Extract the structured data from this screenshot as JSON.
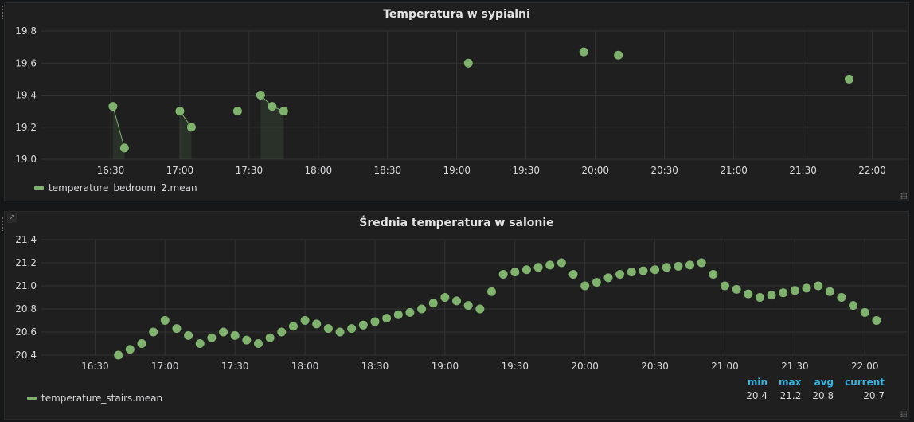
{
  "chart_data": [
    {
      "type": "scatter",
      "title": "Temperatura w sypialni",
      "xlim": [
        "16:00",
        "22:15"
      ],
      "ylim": [
        19.0,
        19.8
      ],
      "yticks": [
        "19.0",
        "19.2",
        "19.4",
        "19.6",
        "19.8"
      ],
      "xticks": [
        "16:30",
        "17:00",
        "17:30",
        "18:00",
        "18:30",
        "19:00",
        "19:30",
        "20:00",
        "20:30",
        "21:00",
        "21:30",
        "22:00"
      ],
      "grid": true,
      "legend_position": "bottom-left",
      "color": "#7eb26d",
      "series": [
        {
          "name": "temperature_bedroom_2.mean",
          "points": [
            {
              "x": "16:31",
              "y": 19.33
            },
            {
              "x": "16:36",
              "y": 19.07
            },
            {
              "x": "17:00",
              "y": 19.3
            },
            {
              "x": "17:05",
              "y": 19.2
            },
            {
              "x": "17:25",
              "y": 19.3
            },
            {
              "x": "17:35",
              "y": 19.4
            },
            {
              "x": "17:40",
              "y": 19.33
            },
            {
              "x": "17:45",
              "y": 19.3
            },
            {
              "x": "19:05",
              "y": 19.6
            },
            {
              "x": "19:55",
              "y": 19.67
            },
            {
              "x": "20:10",
              "y": 19.65
            },
            {
              "x": "21:50",
              "y": 19.5
            }
          ],
          "segments": [
            [
              0,
              1
            ],
            [
              2,
              3
            ],
            [
              5,
              6,
              7
            ]
          ]
        }
      ]
    },
    {
      "type": "scatter",
      "title": "Średnia temperatura w salonie",
      "xlim": [
        "16:07",
        "22:18"
      ],
      "ylim": [
        20.4,
        21.4
      ],
      "yticks": [
        "20.4",
        "20.6",
        "20.8",
        "21.0",
        "21.2",
        "21.4"
      ],
      "xticks": [
        "16:30",
        "17:00",
        "17:30",
        "18:00",
        "18:30",
        "19:00",
        "19:30",
        "20:00",
        "20:30",
        "21:00",
        "21:30",
        "22:00"
      ],
      "grid": true,
      "legend_position": "bottom-left",
      "color": "#7eb26d",
      "series": [
        {
          "name": "temperature_stairs.mean",
          "points": [
            {
              "x": "16:40",
              "y": 20.4
            },
            {
              "x": "16:45",
              "y": 20.45
            },
            {
              "x": "16:50",
              "y": 20.5
            },
            {
              "x": "16:55",
              "y": 20.6
            },
            {
              "x": "17:00",
              "y": 20.7
            },
            {
              "x": "17:05",
              "y": 20.63
            },
            {
              "x": "17:10",
              "y": 20.57
            },
            {
              "x": "17:15",
              "y": 20.5
            },
            {
              "x": "17:20",
              "y": 20.55
            },
            {
              "x": "17:25",
              "y": 20.6
            },
            {
              "x": "17:30",
              "y": 20.57
            },
            {
              "x": "17:35",
              "y": 20.53
            },
            {
              "x": "17:40",
              "y": 20.5
            },
            {
              "x": "17:45",
              "y": 20.55
            },
            {
              "x": "17:50",
              "y": 20.6
            },
            {
              "x": "17:55",
              "y": 20.65
            },
            {
              "x": "18:00",
              "y": 20.7
            },
            {
              "x": "18:05",
              "y": 20.67
            },
            {
              "x": "18:10",
              "y": 20.63
            },
            {
              "x": "18:15",
              "y": 20.6
            },
            {
              "x": "18:20",
              "y": 20.63
            },
            {
              "x": "18:25",
              "y": 20.66
            },
            {
              "x": "18:30",
              "y": 20.69
            },
            {
              "x": "18:35",
              "y": 20.72
            },
            {
              "x": "18:40",
              "y": 20.75
            },
            {
              "x": "18:45",
              "y": 20.77
            },
            {
              "x": "18:50",
              "y": 20.8
            },
            {
              "x": "18:55",
              "y": 20.85
            },
            {
              "x": "19:00",
              "y": 20.9
            },
            {
              "x": "19:05",
              "y": 20.87
            },
            {
              "x": "19:10",
              "y": 20.83
            },
            {
              "x": "19:15",
              "y": 20.8
            },
            {
              "x": "19:20",
              "y": 20.95
            },
            {
              "x": "19:25",
              "y": 21.1
            },
            {
              "x": "19:30",
              "y": 21.12
            },
            {
              "x": "19:35",
              "y": 21.14
            },
            {
              "x": "19:40",
              "y": 21.16
            },
            {
              "x": "19:45",
              "y": 21.18
            },
            {
              "x": "19:50",
              "y": 21.2
            },
            {
              "x": "19:55",
              "y": 21.1
            },
            {
              "x": "20:00",
              "y": 21.0
            },
            {
              "x": "20:05",
              "y": 21.03
            },
            {
              "x": "20:10",
              "y": 21.07
            },
            {
              "x": "20:15",
              "y": 21.1
            },
            {
              "x": "20:20",
              "y": 21.12
            },
            {
              "x": "20:25",
              "y": 21.13
            },
            {
              "x": "20:30",
              "y": 21.14
            },
            {
              "x": "20:35",
              "y": 21.16
            },
            {
              "x": "20:40",
              "y": 21.17
            },
            {
              "x": "20:45",
              "y": 21.18
            },
            {
              "x": "20:50",
              "y": 21.2
            },
            {
              "x": "20:55",
              "y": 21.1
            },
            {
              "x": "21:00",
              "y": 21.0
            },
            {
              "x": "21:05",
              "y": 20.97
            },
            {
              "x": "21:10",
              "y": 20.93
            },
            {
              "x": "21:15",
              "y": 20.9
            },
            {
              "x": "21:20",
              "y": 20.92
            },
            {
              "x": "21:25",
              "y": 20.94
            },
            {
              "x": "21:30",
              "y": 20.96
            },
            {
              "x": "21:35",
              "y": 20.98
            },
            {
              "x": "21:40",
              "y": 21.0
            },
            {
              "x": "21:45",
              "y": 20.95
            },
            {
              "x": "21:50",
              "y": 20.9
            },
            {
              "x": "21:55",
              "y": 20.83
            },
            {
              "x": "22:00",
              "y": 20.77
            },
            {
              "x": "22:05",
              "y": 20.7
            }
          ],
          "segments": []
        }
      ],
      "legend_stats": {
        "headers": [
          "min",
          "max",
          "avg",
          "current"
        ],
        "values": [
          "20.4",
          "21.2",
          "20.8",
          "20.7"
        ]
      }
    }
  ],
  "panel_icons": {
    "panel2_link": "external-link-icon"
  }
}
